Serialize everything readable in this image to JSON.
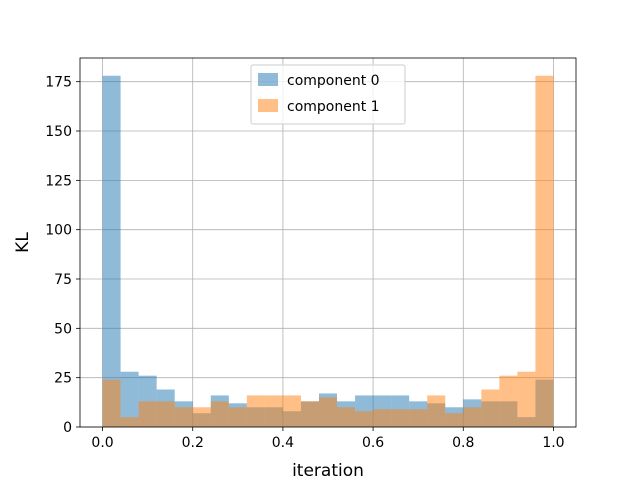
{
  "chart_data": {
    "type": "bar",
    "subtype": "overlapping-histogram",
    "title": "",
    "xlabel": "iteration",
    "ylabel": "KL",
    "xlim": [
      -0.05,
      1.05
    ],
    "ylim": [
      0,
      187
    ],
    "xticks": [
      "0.0",
      "0.2",
      "0.4",
      "0.6",
      "0.8",
      "1.0"
    ],
    "yticks": [
      "0",
      "25",
      "50",
      "75",
      "100",
      "125",
      "150",
      "175"
    ],
    "grid": true,
    "legend_position": "top-center",
    "bin_edges": [
      0.0,
      0.04,
      0.08,
      0.12,
      0.16,
      0.2,
      0.24,
      0.28,
      0.32,
      0.36,
      0.4,
      0.44,
      0.48,
      0.52,
      0.56,
      0.6,
      0.64,
      0.68,
      0.72,
      0.76,
      0.8,
      0.84,
      0.88,
      0.92,
      0.96,
      1.0
    ],
    "series": [
      {
        "name": "component 0",
        "color": "#1f77b4",
        "values": [
          178,
          28,
          26,
          19,
          13,
          7,
          16,
          12,
          10,
          10,
          8,
          13,
          17,
          13,
          16,
          16,
          16,
          13,
          12,
          10,
          14,
          13,
          13,
          5,
          24
        ]
      },
      {
        "name": "component 1",
        "color": "#ff7f0e",
        "values": [
          24,
          5,
          13,
          13,
          10,
          10,
          13,
          10,
          16,
          16,
          16,
          13,
          15,
          10,
          8,
          9,
          9,
          9,
          16,
          7,
          10,
          19,
          26,
          28,
          178
        ]
      }
    ]
  }
}
